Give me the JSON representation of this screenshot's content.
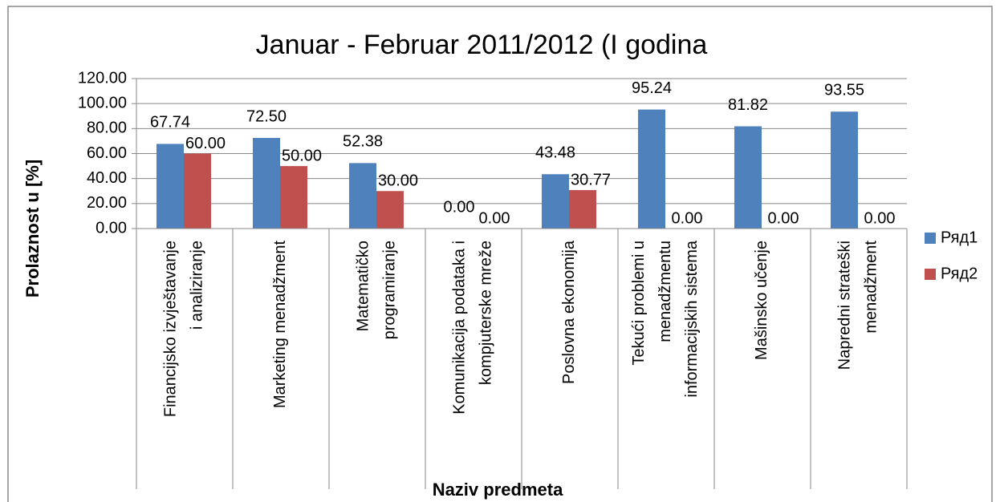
{
  "chart_data": {
    "type": "bar",
    "title": "Januar - Februar 2011/2012 (I godina",
    "y_label": "Prolaznost u [%]",
    "x_label": "Naziv predmeta",
    "categories": [
      "Financijsko izvještavanje\ni analiziranje",
      "Marketing menadžment",
      "Matematičko\nprogramiranje",
      "Komunikacija podataka i\nkompjuterske mreže",
      "Poslovna ekonomija",
      "Tekući problemi u\nmenadžmentu\ninformacijskih sistema",
      "Mašinsko učenje",
      "Napredni strateški\nmenadžment"
    ],
    "series": [
      {
        "name": "Ряд1",
        "color": "#4f81bd",
        "values": [
          67.74,
          72.5,
          52.38,
          0,
          43.48,
          95.24,
          81.82,
          93.55
        ],
        "value_labels": [
          "67.74",
          "72.50",
          "52.38",
          "0.00",
          "43.48",
          "95.24",
          "81.82",
          "93.55"
        ]
      },
      {
        "name": "Ряд2",
        "color": "#c0504d",
        "values": [
          60,
          50,
          30,
          0,
          30.77,
          0,
          0,
          0
        ],
        "value_labels": [
          "60.00",
          "50.00",
          "30.00",
          "0.00",
          "30.77",
          "0.00",
          "0.00",
          "0.00"
        ]
      }
    ],
    "ylim": [
      0,
      120
    ],
    "yticks": [
      {
        "value": 0,
        "label": "0.00"
      },
      {
        "value": 20,
        "label": "20.00"
      },
      {
        "value": 40,
        "label": "40.00"
      },
      {
        "value": 60,
        "label": "60.00"
      },
      {
        "value": 80,
        "label": "80.00"
      },
      {
        "value": 100,
        "label": "100.00"
      },
      {
        "value": 120,
        "label": "120.00"
      }
    ],
    "grid": true,
    "legend": "right"
  }
}
